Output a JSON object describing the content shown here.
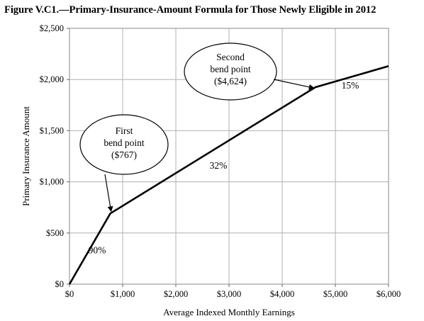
{
  "chart_data": {
    "type": "line",
    "title": "Figure V.C1.—Primary-Insurance-Amount Formula for Those Newly Eligible in 2012",
    "xlabel": "Average Indexed Monthly Earnings",
    "ylabel": "Primary Insurance Amount",
    "xlim": [
      0,
      6000
    ],
    "ylim": [
      0,
      2500
    ],
    "x_ticks": [
      "$0",
      "$1,000",
      "$2,000",
      "$3,000",
      "$4,000",
      "$5,000",
      "$6,000"
    ],
    "y_ticks": [
      "$0",
      "$500",
      "$1,000",
      "$1,500",
      "$2,000",
      "$2,500"
    ],
    "grid": true,
    "series": [
      {
        "x": [
          0,
          767,
          4624,
          6000
        ],
        "y": [
          0,
          690.3,
          1924.54,
          2130.94
        ]
      }
    ],
    "annotations": [
      {
        "lines": [
          "First",
          "bend point",
          "($767)"
        ],
        "x": 767,
        "y": 690.3
      },
      {
        "lines": [
          "Second",
          "bend point",
          "($4,624)"
        ],
        "x": 4624,
        "y": 1924.54
      }
    ],
    "segment_labels": [
      {
        "text": "90%",
        "x": 520,
        "y": 300
      },
      {
        "text": "32%",
        "x": 2800,
        "y": 1130
      },
      {
        "text": "15%",
        "x": 5280,
        "y": 1910
      }
    ]
  }
}
